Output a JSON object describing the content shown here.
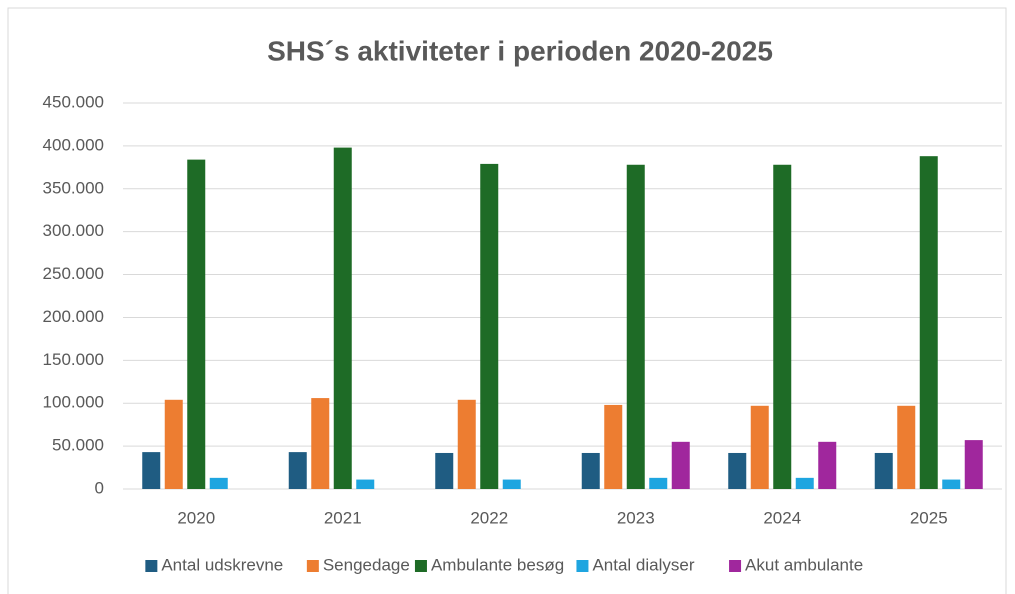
{
  "chart_data": {
    "type": "bar",
    "title": "SHS´s aktiviteter i perioden 2020-2025",
    "categories": [
      "2020",
      "2021",
      "2022",
      "2023",
      "2024",
      "2025"
    ],
    "series": [
      {
        "name": "Antal udskrevne",
        "color": "#1f5c82",
        "values": [
          43000,
          43000,
          42000,
          42000,
          42000,
          42000
        ]
      },
      {
        "name": "Sengedage",
        "color": "#ed7d31",
        "values": [
          104000,
          106000,
          104000,
          98000,
          97000,
          97000
        ]
      },
      {
        "name": "Ambulante besøg",
        "color": "#1e6b26",
        "values": [
          384000,
          398000,
          379000,
          378000,
          378000,
          388000
        ]
      },
      {
        "name": "Antal dialyser",
        "color": "#1ea5e0",
        "values": [
          13000,
          11000,
          11000,
          13000,
          13000,
          11000
        ]
      },
      {
        "name": "Akut ambulante",
        "color": "#a0279d",
        "values": [
          null,
          null,
          null,
          55000,
          55000,
          57000
        ]
      }
    ],
    "ylim": [
      0,
      450000
    ],
    "yticks": [
      0,
      {
        "value": 50000,
        "label": "50.000"
      },
      {
        "value": 100000,
        "label": "100.000"
      },
      {
        "value": 150000,
        "label": "150.000"
      },
      {
        "value": 200000,
        "label": "200.000"
      },
      {
        "value": 250000,
        "label": "250.000"
      },
      {
        "value": 300000,
        "label": "300.000"
      },
      {
        "value": 350000,
        "label": "350.000"
      },
      {
        "value": 400000,
        "label": "400.000"
      },
      {
        "value": 450000,
        "label": "450.000"
      }
    ],
    "grid": true,
    "legend": "bottom"
  }
}
